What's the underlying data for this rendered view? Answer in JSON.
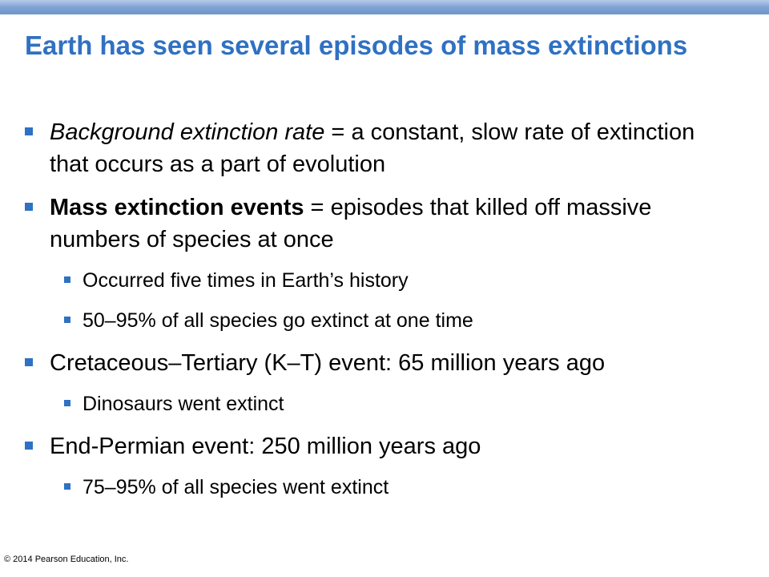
{
  "slide": {
    "title": "Earth has seen several episodes of mass extinctions",
    "bullets": [
      {
        "term": "Background extinction rate",
        "separator": " = ",
        "text": "a constant, slow rate of extinction that occurs as a part of evolution"
      },
      {
        "term": "Mass extinction events",
        "separator": " = ",
        "text": "episodes that killed off massive numbers of species at once",
        "sub": [
          "Occurred five times in Earth’s history",
          "50–95% of all species go extinct at one time"
        ]
      },
      {
        "text": "Cretaceous–Tertiary (K–T) event: 65 million years ago",
        "sub": [
          "Dinosaurs went extinct"
        ]
      },
      {
        "text": "End-Permian event: 250 million years ago",
        "sub": [
          "75–95% of all species went extinct"
        ]
      }
    ],
    "copyright": "© 2014 Pearson Education, Inc."
  },
  "colors": {
    "title": "#2f71c2",
    "bullet_marker": "#2f71c2",
    "top_bar": "#7fa3d3",
    "body_text": "#000000",
    "background": "#ffffff"
  }
}
